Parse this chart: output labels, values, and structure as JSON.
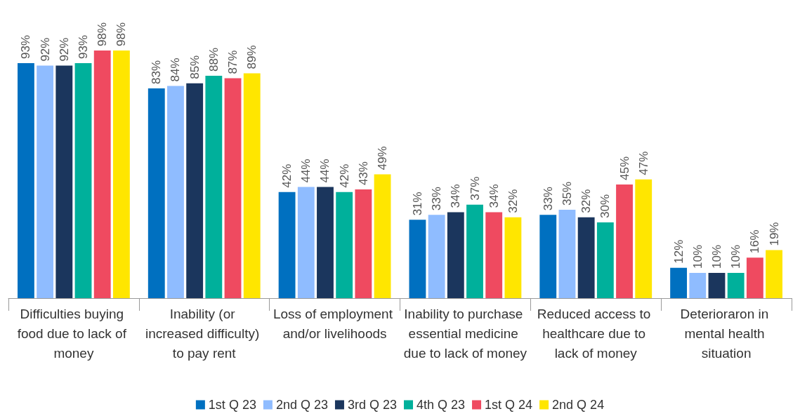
{
  "chart_data": {
    "type": "bar",
    "categories": [
      "Difficulties buying food due to lack of money",
      "Inability (or increased difficulty) to pay rent",
      "Loss of employment and/or livelihoods",
      "Inability to purchase essential medicine due to lack of money",
      "Reduced access to healthcare due to lack of money",
      "Deterioraron in mental health situation"
    ],
    "series": [
      {
        "name": "1st Q 23",
        "color": "#0070c0",
        "values": [
          93,
          83,
          42,
          31,
          33,
          12
        ],
        "value_labels": [
          "93%",
          "83%",
          "42%",
          "31%",
          "33%",
          "12%"
        ]
      },
      {
        "name": "2nd Q 23",
        "color": "#8fbcff",
        "values": [
          92,
          84,
          44,
          33,
          35,
          10
        ],
        "value_labels": [
          "92%",
          "84%",
          "44%",
          "33%",
          "35%",
          "10%"
        ]
      },
      {
        "name": "3rd Q 23",
        "color": "#1b365d",
        "values": [
          92,
          85,
          44,
          34,
          32,
          10
        ],
        "value_labels": [
          "92%",
          "85%",
          "44%",
          "34%",
          "32%",
          "10%"
        ]
      },
      {
        "name": "4th Q 23",
        "color": "#00b09b",
        "values": [
          93,
          88,
          42,
          37,
          30,
          10
        ],
        "value_labels": [
          "93%",
          "88%",
          "42%",
          "37%",
          "30%",
          "10%"
        ]
      },
      {
        "name": "1st Q 24",
        "color": "#ef4a60",
        "values": [
          98,
          87,
          43,
          34,
          45,
          16
        ],
        "value_labels": [
          "98%",
          "87%",
          "43%",
          "34%",
          "45%",
          "16%"
        ]
      },
      {
        "name": "2nd Q 24",
        "color": "#ffe600",
        "values": [
          98,
          89,
          49,
          32,
          47,
          19
        ],
        "value_labels": [
          "98%",
          "89%",
          "49%",
          "32%",
          "47%",
          "19%"
        ]
      }
    ],
    "legend": "bottom"
  }
}
